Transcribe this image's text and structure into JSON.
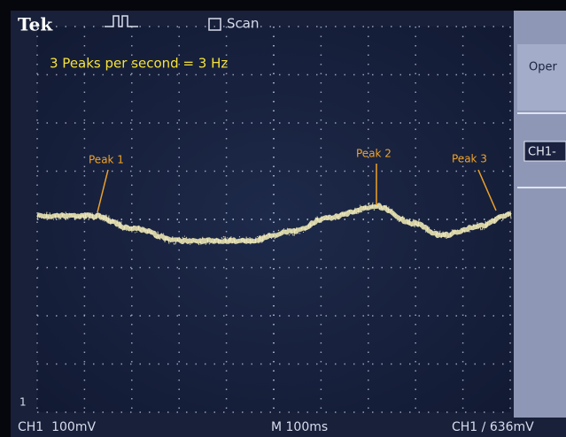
{
  "header": {
    "brand": "Tek",
    "mode": "Scan"
  },
  "annotation": {
    "title": "3 Peaks per second = 3 Hz",
    "peaks": [
      "Peak 1",
      "Peak 2",
      "Peak 3"
    ]
  },
  "side_panel": {
    "items": [
      "Oper",
      "CH1-"
    ]
  },
  "footer": {
    "ground_marker": "1",
    "channel": "CH1  100mV",
    "timebase": "M 100ms",
    "trigger": "CH1 ∕ 636mV"
  }
}
